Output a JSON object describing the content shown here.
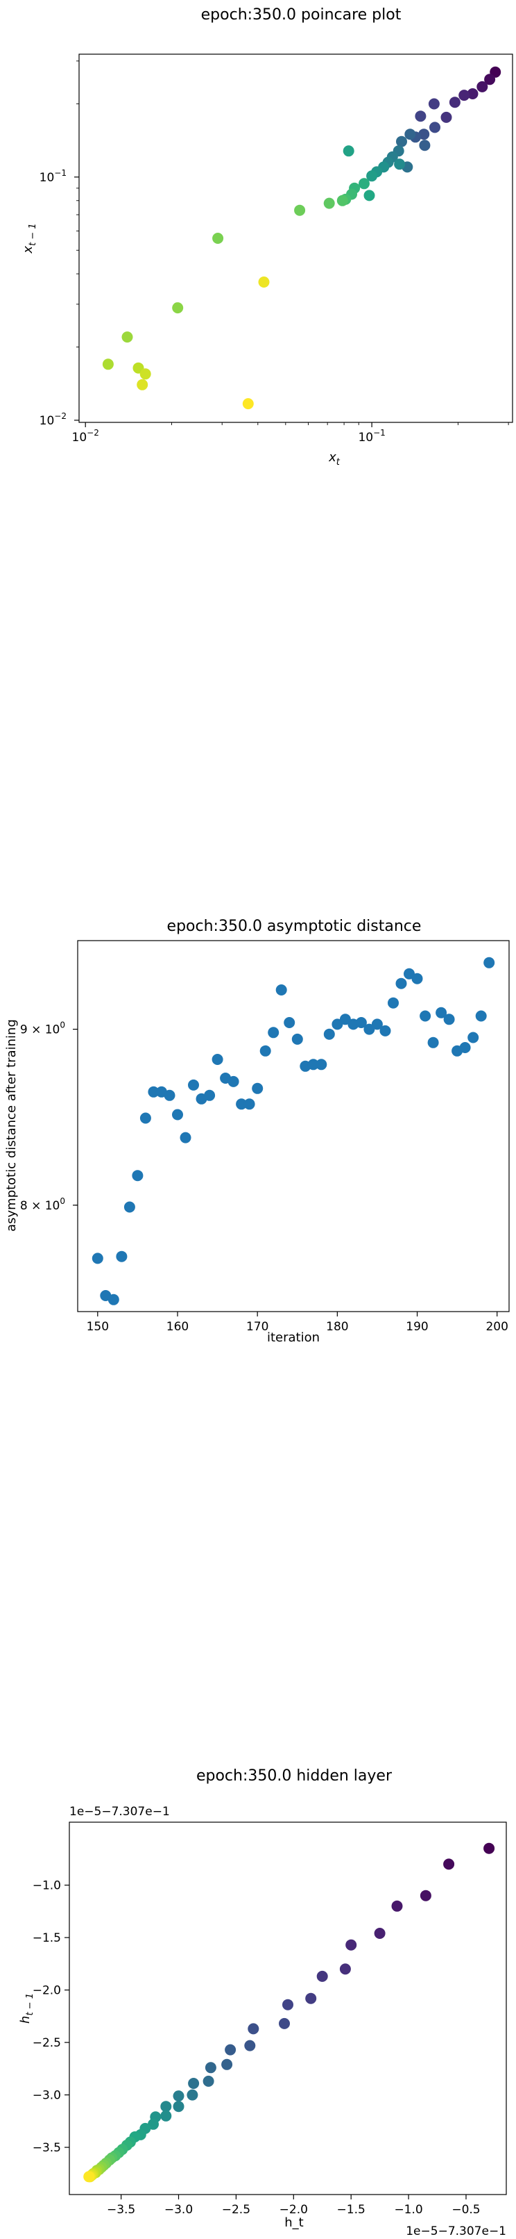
{
  "chart_data": [
    {
      "type": "scatter",
      "title": "epoch:350.0 poincare plot",
      "xlabel": "x_t",
      "ylabel": "x_{t-1}",
      "xscale": "log",
      "yscale": "log",
      "xlim": [
        0.0095,
        0.31
      ],
      "ylim": [
        0.0098,
        0.32
      ],
      "xticks": [
        {
          "v": 0.01,
          "base": "10",
          "exp": "−2"
        },
        {
          "v": 0.1,
          "base": "10",
          "exp": "−1"
        }
      ],
      "yticks": [
        {
          "v": 0.01,
          "base": "10",
          "exp": "−2"
        },
        {
          "v": 0.1,
          "base": "10",
          "exp": "−1"
        }
      ],
      "colormap": "viridis",
      "points": [
        {
          "x": 0.27,
          "y": 0.27
        },
        {
          "x": 0.258,
          "y": 0.252
        },
        {
          "x": 0.243,
          "y": 0.235
        },
        {
          "x": 0.225,
          "y": 0.22
        },
        {
          "x": 0.21,
          "y": 0.217
        },
        {
          "x": 0.195,
          "y": 0.203
        },
        {
          "x": 0.182,
          "y": 0.176
        },
        {
          "x": 0.165,
          "y": 0.2
        },
        {
          "x": 0.148,
          "y": 0.178
        },
        {
          "x": 0.166,
          "y": 0.16
        },
        {
          "x": 0.152,
          "y": 0.15
        },
        {
          "x": 0.142,
          "y": 0.146
        },
        {
          "x": 0.153,
          "y": 0.135
        },
        {
          "x": 0.136,
          "y": 0.15
        },
        {
          "x": 0.127,
          "y": 0.14
        },
        {
          "x": 0.133,
          "y": 0.11
        },
        {
          "x": 0.124,
          "y": 0.128
        },
        {
          "x": 0.118,
          "y": 0.121
        },
        {
          "x": 0.114,
          "y": 0.115
        },
        {
          "x": 0.125,
          "y": 0.113
        },
        {
          "x": 0.11,
          "y": 0.11
        },
        {
          "x": 0.104,
          "y": 0.105
        },
        {
          "x": 0.1,
          "y": 0.101
        },
        {
          "x": 0.083,
          "y": 0.128
        },
        {
          "x": 0.098,
          "y": 0.084
        },
        {
          "x": 0.094,
          "y": 0.094
        },
        {
          "x": 0.087,
          "y": 0.09
        },
        {
          "x": 0.085,
          "y": 0.085
        },
        {
          "x": 0.081,
          "y": 0.081
        },
        {
          "x": 0.079,
          "y": 0.08
        },
        {
          "x": 0.071,
          "y": 0.078
        },
        {
          "x": 0.056,
          "y": 0.073
        },
        {
          "x": 0.029,
          "y": 0.056
        },
        {
          "x": 0.021,
          "y": 0.029
        },
        {
          "x": 0.014,
          "y": 0.022
        },
        {
          "x": 0.012,
          "y": 0.017
        },
        {
          "x": 0.0153,
          "y": 0.0164
        },
        {
          "x": 0.0162,
          "y": 0.0155
        },
        {
          "x": 0.0158,
          "y": 0.014
        },
        {
          "x": 0.042,
          "y": 0.037
        },
        {
          "x": 0.037,
          "y": 0.0117
        }
      ]
    },
    {
      "type": "scatter",
      "title": "epoch:350.0 asymptotic distance",
      "xlabel": "iteration",
      "ylabel": "asymptotic distance after training",
      "yscale": "log",
      "xlim": [
        147.5,
        201.5
      ],
      "ylim": [
        7.45,
        9.55
      ],
      "xticks": [
        150,
        160,
        170,
        180,
        190,
        200
      ],
      "yticks": [
        {
          "v": 8,
          "base": "8 × 10",
          "exp": "0"
        },
        {
          "v": 9,
          "base": "9 × 10",
          "exp": "0"
        }
      ],
      "color": "#1f77b4",
      "points": [
        {
          "x": 150,
          "y": 7.72
        },
        {
          "x": 151,
          "y": 7.53
        },
        {
          "x": 152,
          "y": 7.51
        },
        {
          "x": 153,
          "y": 7.73
        },
        {
          "x": 154,
          "y": 7.99
        },
        {
          "x": 155,
          "y": 8.16
        },
        {
          "x": 156,
          "y": 8.48
        },
        {
          "x": 157,
          "y": 8.63
        },
        {
          "x": 158,
          "y": 8.63
        },
        {
          "x": 159,
          "y": 8.61
        },
        {
          "x": 160,
          "y": 8.5
        },
        {
          "x": 161,
          "y": 8.37
        },
        {
          "x": 162,
          "y": 8.67
        },
        {
          "x": 163,
          "y": 8.59
        },
        {
          "x": 164,
          "y": 8.61
        },
        {
          "x": 165,
          "y": 8.82
        },
        {
          "x": 166,
          "y": 8.71
        },
        {
          "x": 167,
          "y": 8.69
        },
        {
          "x": 168,
          "y": 8.56
        },
        {
          "x": 169,
          "y": 8.56
        },
        {
          "x": 170,
          "y": 8.65
        },
        {
          "x": 171,
          "y": 8.87
        },
        {
          "x": 172,
          "y": 8.98
        },
        {
          "x": 173,
          "y": 9.24
        },
        {
          "x": 174,
          "y": 9.04
        },
        {
          "x": 175,
          "y": 8.94
        },
        {
          "x": 176,
          "y": 8.78
        },
        {
          "x": 177,
          "y": 8.79
        },
        {
          "x": 178,
          "y": 8.79
        },
        {
          "x": 179,
          "y": 8.97
        },
        {
          "x": 180,
          "y": 9.03
        },
        {
          "x": 181,
          "y": 9.06
        },
        {
          "x": 182,
          "y": 9.03
        },
        {
          "x": 183,
          "y": 9.04
        },
        {
          "x": 184,
          "y": 9.0
        },
        {
          "x": 185,
          "y": 9.03
        },
        {
          "x": 186,
          "y": 8.99
        },
        {
          "x": 187,
          "y": 9.16
        },
        {
          "x": 188,
          "y": 9.28
        },
        {
          "x": 189,
          "y": 9.34
        },
        {
          "x": 190,
          "y": 9.31
        },
        {
          "x": 191,
          "y": 9.08
        },
        {
          "x": 192,
          "y": 8.92
        },
        {
          "x": 193,
          "y": 9.1
        },
        {
          "x": 194,
          "y": 9.06
        },
        {
          "x": 195,
          "y": 8.87
        },
        {
          "x": 196,
          "y": 8.89
        },
        {
          "x": 197,
          "y": 8.95
        },
        {
          "x": 198,
          "y": 9.08
        },
        {
          "x": 199,
          "y": 9.41
        }
      ]
    },
    {
      "type": "scatter",
      "title": "epoch:350.0 hidden layer",
      "xlabel": "h_t",
      "ylabel": "h_{t-1}",
      "offset_text_x": "1e−5−7.307e−1",
      "offset_text_y": "1e−5−7.307e−1",
      "xlim": [
        -3.95,
        -0.15
      ],
      "ylim": [
        -3.95,
        -0.4
      ],
      "xticks": [
        {
          "v": -3.5,
          "t": "−3.5"
        },
        {
          "v": -3.0,
          "t": "−3.0"
        },
        {
          "v": -2.5,
          "t": "−2.5"
        },
        {
          "v": -2.0,
          "t": "−2.0"
        },
        {
          "v": -1.5,
          "t": "−1.5"
        },
        {
          "v": -1.0,
          "t": "−1.0"
        },
        {
          "v": -0.5,
          "t": "−0.5"
        }
      ],
      "yticks": [
        {
          "v": -3.5,
          "t": "−3.5"
        },
        {
          "v": -3.0,
          "t": "−3.0"
        },
        {
          "v": -2.5,
          "t": "−2.5"
        },
        {
          "v": -2.0,
          "t": "−2.0"
        },
        {
          "v": -1.5,
          "t": "−1.5"
        },
        {
          "v": -1.0,
          "t": "−1.0"
        }
      ],
      "colormap": "viridis",
      "points": [
        {
          "x": -0.3,
          "y": -0.65
        },
        {
          "x": -0.65,
          "y": -0.8
        },
        {
          "x": -0.85,
          "y": -1.1
        },
        {
          "x": -1.1,
          "y": -1.2
        },
        {
          "x": -1.25,
          "y": -1.46
        },
        {
          "x": -1.5,
          "y": -1.57
        },
        {
          "x": -1.55,
          "y": -1.8
        },
        {
          "x": -1.75,
          "y": -1.87
        },
        {
          "x": -1.85,
          "y": -2.08
        },
        {
          "x": -2.05,
          "y": -2.14
        },
        {
          "x": -2.08,
          "y": -2.32
        },
        {
          "x": -2.35,
          "y": -2.37
        },
        {
          "x": -2.38,
          "y": -2.53
        },
        {
          "x": -2.55,
          "y": -2.57
        },
        {
          "x": -2.58,
          "y": -2.71
        },
        {
          "x": -2.72,
          "y": -2.74
        },
        {
          "x": -2.74,
          "y": -2.87
        },
        {
          "x": -2.87,
          "y": -2.89
        },
        {
          "x": -2.88,
          "y": -3.0
        },
        {
          "x": -3.0,
          "y": -3.01
        },
        {
          "x": -3.0,
          "y": -3.11
        },
        {
          "x": -3.11,
          "y": -3.11
        },
        {
          "x": -3.11,
          "y": -3.2
        },
        {
          "x": -3.2,
          "y": -3.21
        },
        {
          "x": -3.22,
          "y": -3.28
        },
        {
          "x": -3.29,
          "y": -3.32
        },
        {
          "x": -3.33,
          "y": -3.38
        },
        {
          "x": -3.38,
          "y": -3.4
        },
        {
          "x": -3.42,
          "y": -3.45
        },
        {
          "x": -3.45,
          "y": -3.48
        },
        {
          "x": -3.49,
          "y": -3.52
        },
        {
          "x": -3.52,
          "y": -3.55
        },
        {
          "x": -3.55,
          "y": -3.58
        },
        {
          "x": -3.58,
          "y": -3.6
        },
        {
          "x": -3.6,
          "y": -3.62
        },
        {
          "x": -3.63,
          "y": -3.65
        },
        {
          "x": -3.65,
          "y": -3.67
        },
        {
          "x": -3.67,
          "y": -3.69
        },
        {
          "x": -3.69,
          "y": -3.71
        },
        {
          "x": -3.71,
          "y": -3.72
        },
        {
          "x": -3.72,
          "y": -3.74
        },
        {
          "x": -3.74,
          "y": -3.75
        },
        {
          "x": -3.75,
          "y": -3.76
        },
        {
          "x": -3.76,
          "y": -3.77
        },
        {
          "x": -3.77,
          "y": -3.78
        },
        {
          "x": -3.78,
          "y": -3.78
        }
      ]
    }
  ]
}
